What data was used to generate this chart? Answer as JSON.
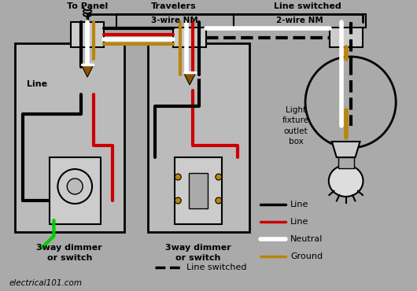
{
  "bg_color": "#aaaaaa",
  "colors": {
    "black": "#000000",
    "red": "#cc0000",
    "white": "#ffffff",
    "ground": "#b8860b",
    "green": "#00cc00",
    "box_gray": "#bbbbbb",
    "conduit_gray": "#cccccc",
    "wirenut_brown": "#8B5500"
  },
  "labels": {
    "topanel": "To Panel",
    "travelers": "Travelers",
    "lineswitched": "Line switched",
    "3wirenm": "3-wire NM",
    "2wirenm": "2-wire NM",
    "line1": "Line",
    "3way1": "3way dimmer\nor switch",
    "3way2": "3way dimmer\nor switch",
    "lightfixture": "Light\nfixture\noutlet\nbox",
    "website": "electrical101.com",
    "legend_line_black": "Line",
    "legend_line_red": "Line",
    "legend_neutral": "Neutral",
    "legend_ground": "Ground",
    "legend_lineswitched": "Line switched"
  }
}
